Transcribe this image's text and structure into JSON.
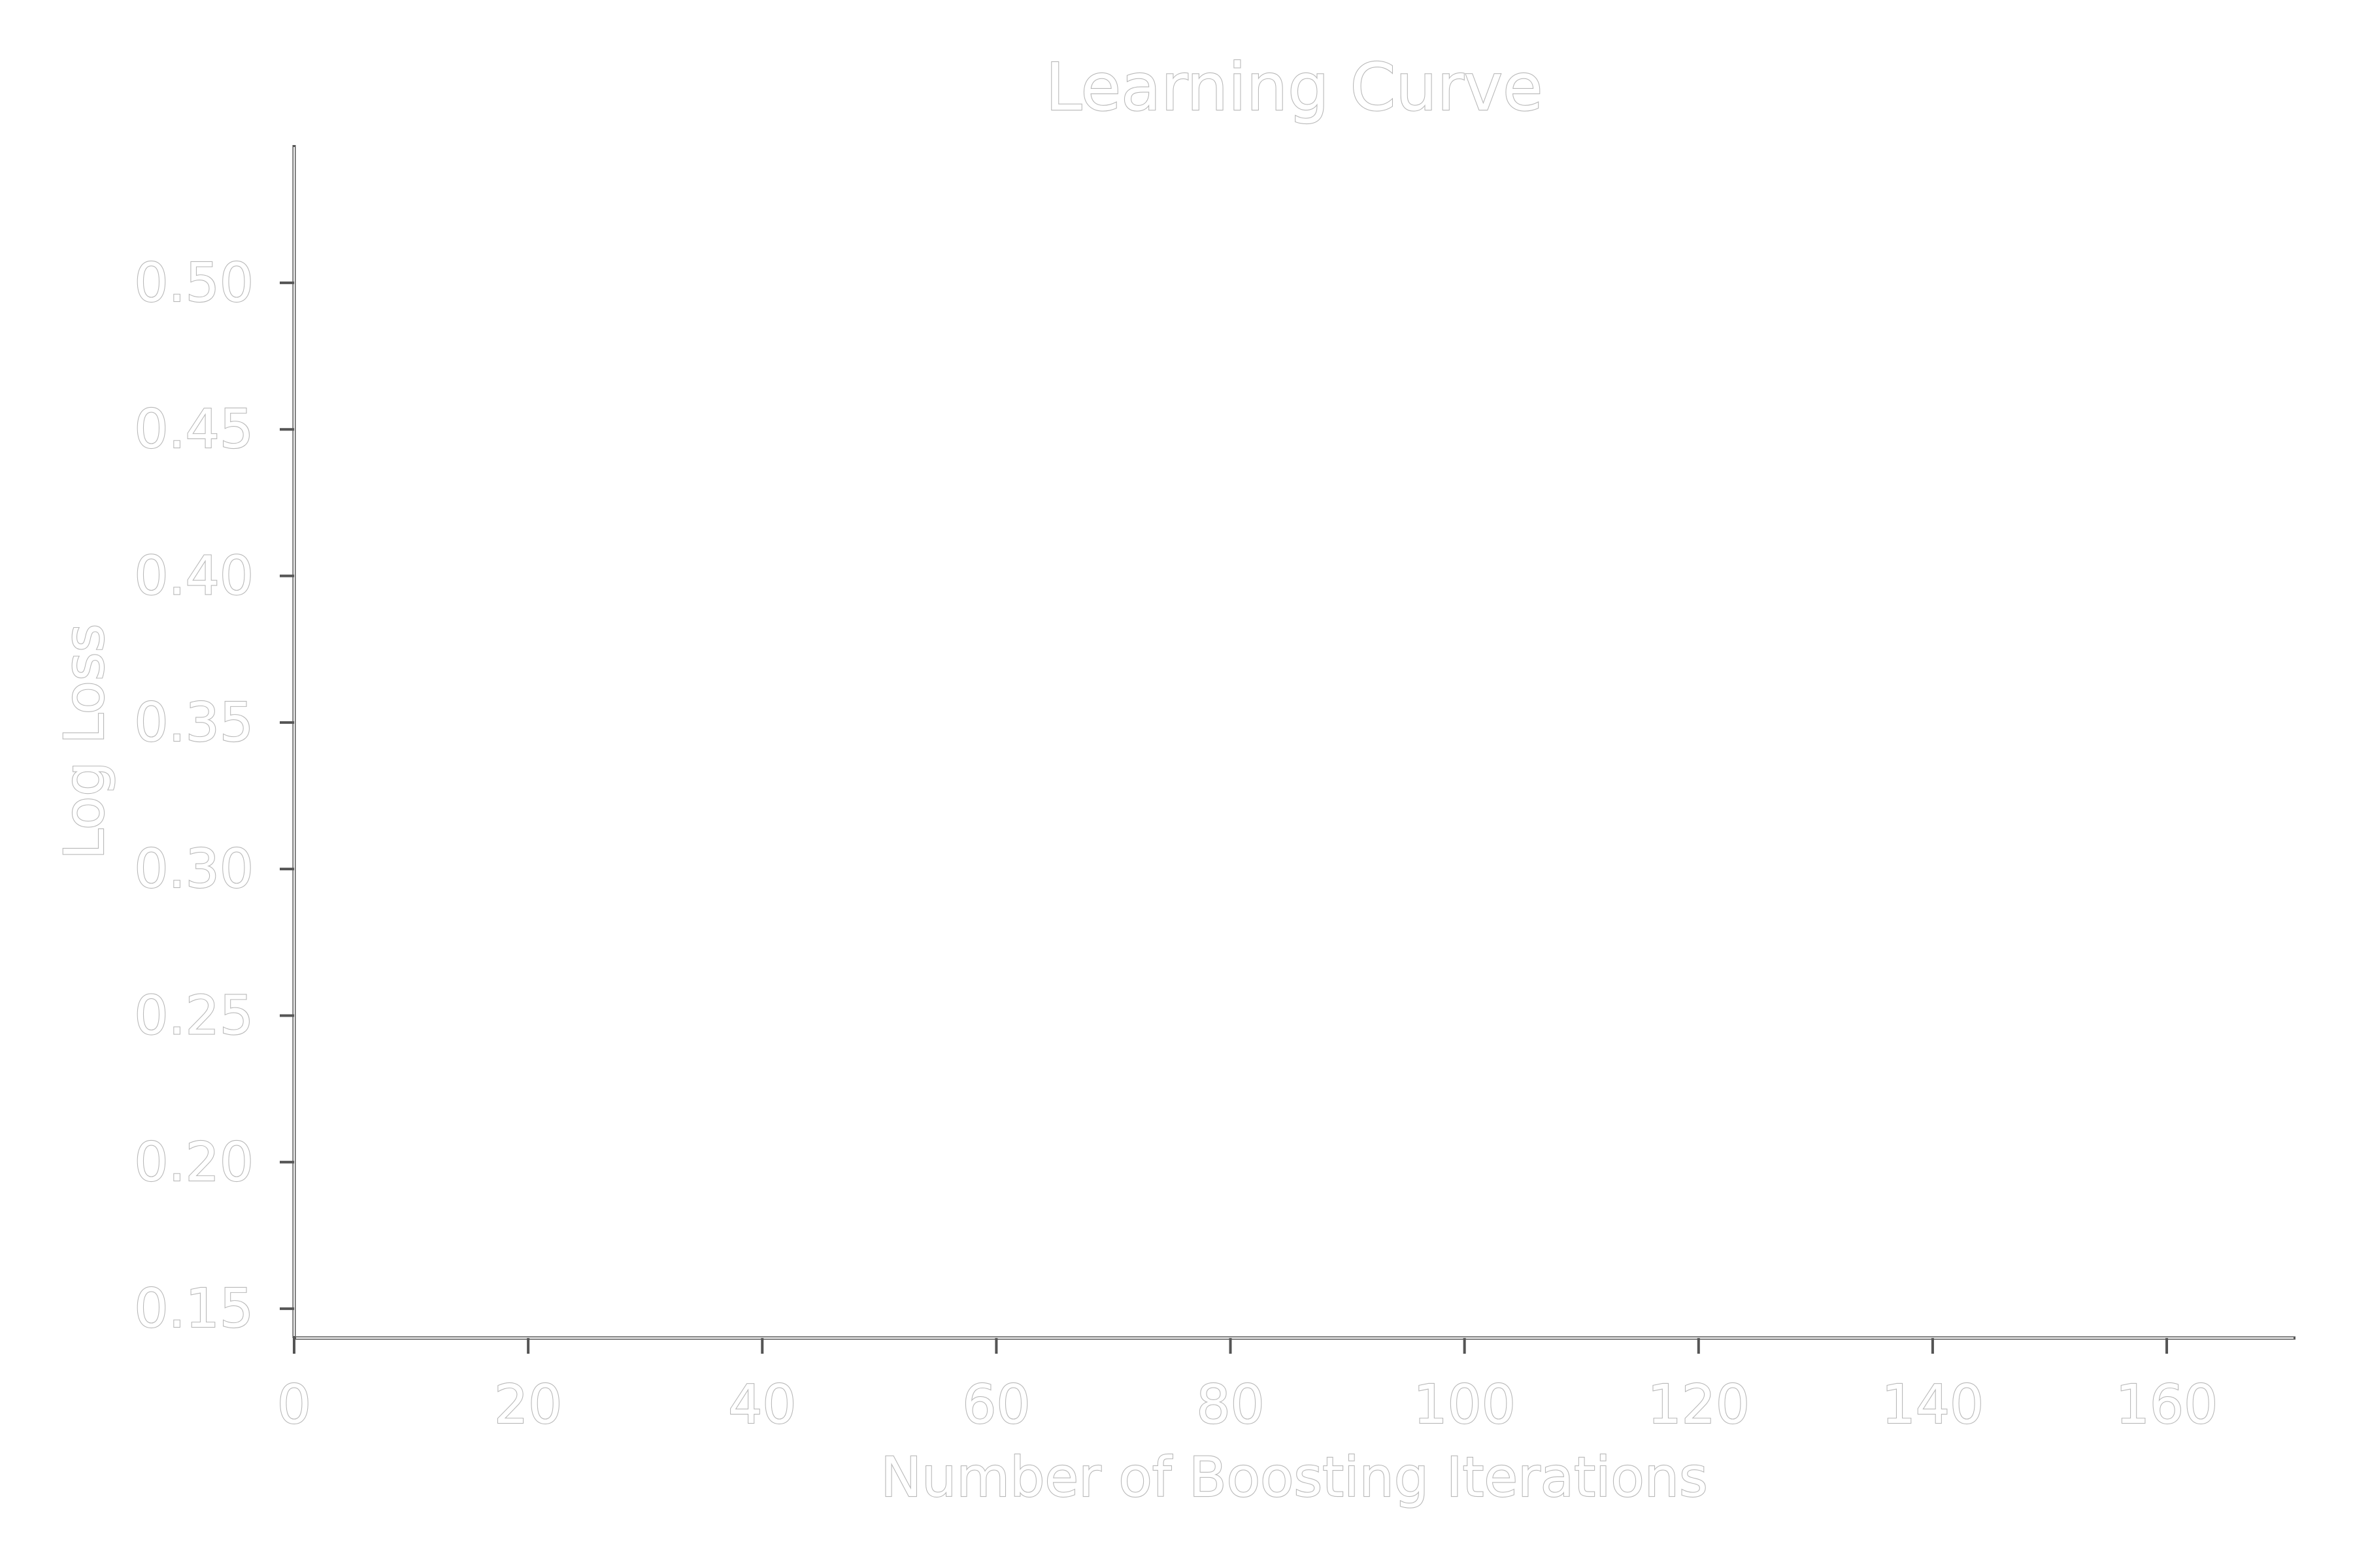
{
  "chart_data": {
    "type": "line",
    "title": "Learning Curve",
    "xlabel": "Number of Boosting Iterations",
    "ylabel": "Log Loss",
    "xlim": [
      0,
      171
    ],
    "ylim": [
      0.14,
      0.547
    ],
    "x_ticks": [
      0,
      20,
      40,
      60,
      80,
      100,
      120,
      140,
      160
    ],
    "x_tick_labels": [
      "0",
      "20",
      "40",
      "60",
      "80",
      "100",
      "120",
      "140",
      "160"
    ],
    "y_ticks": [
      0.15,
      0.2,
      0.25,
      0.3,
      0.35,
      0.4,
      0.45,
      0.5
    ],
    "y_tick_labels": [
      "0.15",
      "0.20",
      "0.25",
      "0.30",
      "0.35",
      "0.40",
      "0.45",
      "0.50"
    ],
    "series": [],
    "grid": false,
    "legend": "none",
    "colors": {
      "text_outline": "#b8b8b8",
      "axis": "#555555",
      "background": "#ffffff"
    }
  }
}
